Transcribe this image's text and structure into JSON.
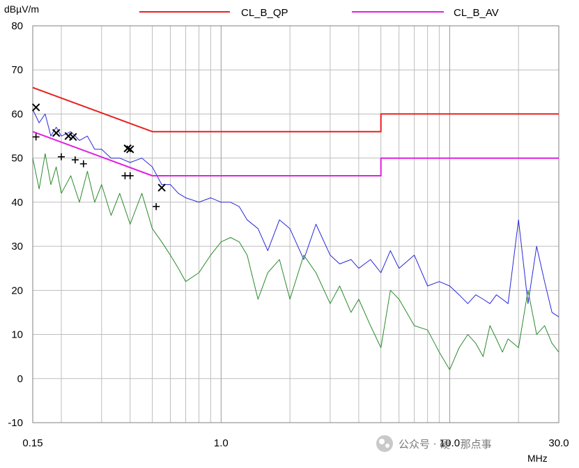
{
  "chart_data": {
    "type": "line",
    "ylabel": "dBµV/m",
    "xlabel": "MHz",
    "x_scale": "log",
    "xlim": [
      0.15,
      30.0
    ],
    "ylim": [
      -10,
      80
    ],
    "x_tick_labels": [
      {
        "value": 0.15,
        "label": "0.15"
      },
      {
        "value": 1.0,
        "label": "1.0"
      },
      {
        "value": 10.0,
        "label": "10.0"
      },
      {
        "value": 30.0,
        "label": "30.0"
      }
    ],
    "y_ticks": [
      -10,
      0,
      10,
      20,
      30,
      40,
      50,
      60,
      70,
      80
    ],
    "grid": true,
    "legend_position": "top",
    "series": [
      {
        "name": "CL_B_QP",
        "color": "#e8201c",
        "kind": "limit",
        "x": [
          0.15,
          0.5,
          0.5,
          5.0,
          5.0,
          30.0
        ],
        "y": [
          66,
          56,
          56,
          56,
          60,
          60
        ]
      },
      {
        "name": "CL_B_AV",
        "color": "#e020e0",
        "kind": "limit",
        "x": [
          0.15,
          0.5,
          0.5,
          5.0,
          5.0,
          30.0
        ],
        "y": [
          56,
          46,
          46,
          46,
          50,
          50
        ]
      },
      {
        "name": "",
        "color": "#2828d8",
        "kind": "trace",
        "x": [
          0.15,
          0.16,
          0.17,
          0.18,
          0.19,
          0.2,
          0.22,
          0.24,
          0.26,
          0.28,
          0.3,
          0.33,
          0.36,
          0.4,
          0.45,
          0.5,
          0.55,
          0.6,
          0.65,
          0.7,
          0.8,
          0.9,
          1.0,
          1.1,
          1.2,
          1.3,
          1.45,
          1.6,
          1.8,
          2.0,
          2.3,
          2.6,
          3.0,
          3.3,
          3.7,
          4.0,
          4.5,
          5.0,
          5.5,
          6.0,
          7.0,
          8.0,
          9.0,
          10.0,
          11.0,
          12.0,
          13.0,
          14.0,
          15.0,
          16.0,
          17.0,
          18.0,
          20.0,
          22.0,
          24.0,
          26.0,
          28.0,
          30.0
        ],
        "y": [
          61,
          58,
          60,
          55,
          57,
          55,
          56,
          54,
          55,
          52,
          52,
          50,
          50,
          49,
          50,
          48,
          44,
          44,
          42,
          41,
          40,
          41,
          40,
          40,
          39,
          36,
          34,
          29,
          36,
          34,
          27,
          35,
          28,
          26,
          27,
          25,
          27,
          24,
          29,
          25,
          28,
          21,
          22,
          21,
          19,
          17,
          19,
          18,
          17,
          19,
          18,
          17,
          36,
          17,
          30,
          22,
          15,
          14
        ]
      },
      {
        "name": "",
        "color": "#2a8a2a",
        "kind": "trace",
        "x": [
          0.15,
          0.16,
          0.17,
          0.18,
          0.19,
          0.2,
          0.22,
          0.24,
          0.26,
          0.28,
          0.3,
          0.33,
          0.36,
          0.4,
          0.45,
          0.5,
          0.55,
          0.6,
          0.65,
          0.7,
          0.8,
          0.9,
          1.0,
          1.1,
          1.2,
          1.3,
          1.45,
          1.6,
          1.8,
          2.0,
          2.3,
          2.6,
          3.0,
          3.3,
          3.7,
          4.0,
          4.5,
          5.0,
          5.5,
          6.0,
          7.0,
          8.0,
          9.0,
          10.0,
          11.0,
          12.0,
          13.0,
          14.0,
          15.0,
          16.0,
          17.0,
          18.0,
          20.0,
          22.0,
          24.0,
          26.0,
          28.0,
          30.0
        ],
        "y": [
          50,
          43,
          51,
          44,
          48,
          42,
          46,
          40,
          47,
          40,
          44,
          37,
          42,
          35,
          42,
          34,
          31,
          28,
          25,
          22,
          24,
          28,
          31,
          32,
          31,
          28,
          18,
          24,
          27,
          18,
          28,
          24,
          17,
          21,
          15,
          18,
          12,
          7,
          20,
          18,
          12,
          11,
          6,
          2,
          7,
          10,
          8,
          5,
          12,
          9,
          6,
          9,
          7,
          20,
          10,
          12,
          8,
          6
        ]
      }
    ],
    "qp_markers": {
      "symbol": "x",
      "x": [
        0.155,
        0.19,
        0.215,
        0.225,
        0.39,
        0.4,
        0.55
      ],
      "y": [
        61.5,
        55.7,
        55.0,
        54.8,
        52.2,
        52.0,
        43.3
      ]
    },
    "av_markers": {
      "symbol": "+",
      "x": [
        0.155,
        0.2,
        0.23,
        0.25,
        0.38,
        0.4,
        0.52
      ],
      "y": [
        54.8,
        50.3,
        49.6,
        48.7,
        46.0,
        46.0,
        39.0
      ]
    }
  },
  "watermark": {
    "text": "公众号 · 硬 · 那点事"
  }
}
